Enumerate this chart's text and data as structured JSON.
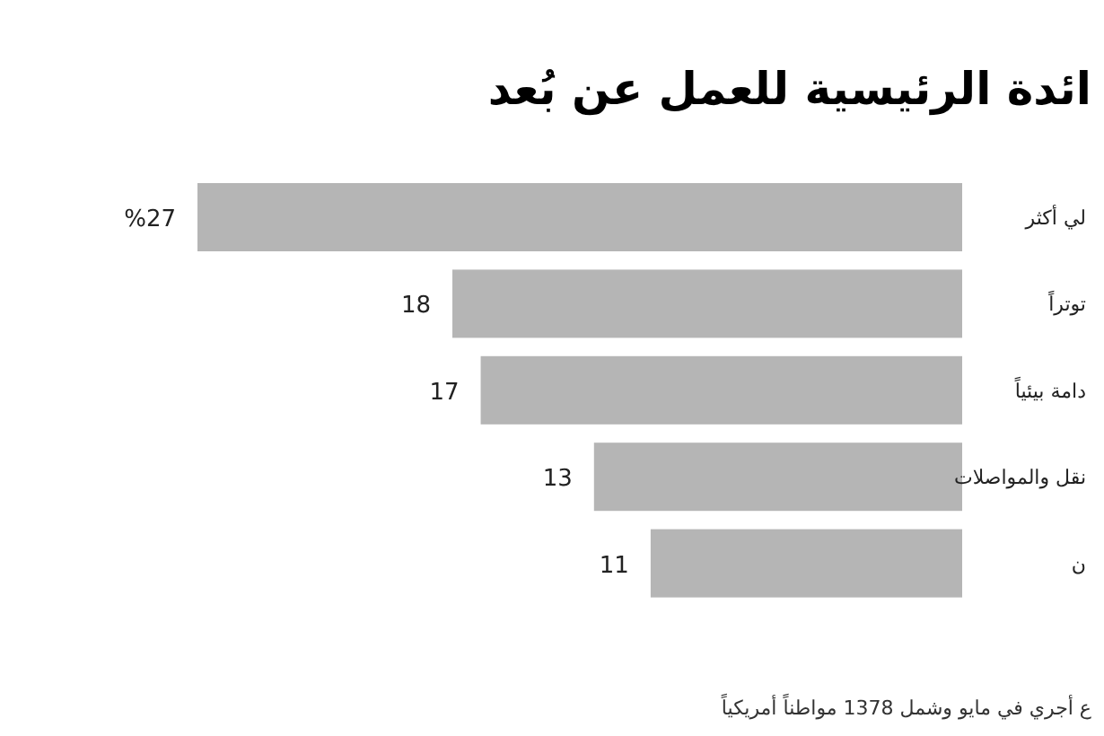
{
  "chart_data": {
    "type": "bar",
    "orientation": "horizontal",
    "title": "ائدة الرئيسية للعمل عن بُعد",
    "categories": [
      "لي أكثر",
      "توتراً",
      "دامة بيئياً",
      "نقل والمواصلات",
      "ن"
    ],
    "values": [
      27,
      18,
      17,
      13,
      11
    ],
    "value_labels": [
      "%27",
      "18",
      "17",
      "13",
      "11"
    ],
    "color": "#b5b5b5",
    "annotations": [
      "ع أجري في مايو وشمل 1378 مواطناً أمريكياً"
    ]
  }
}
